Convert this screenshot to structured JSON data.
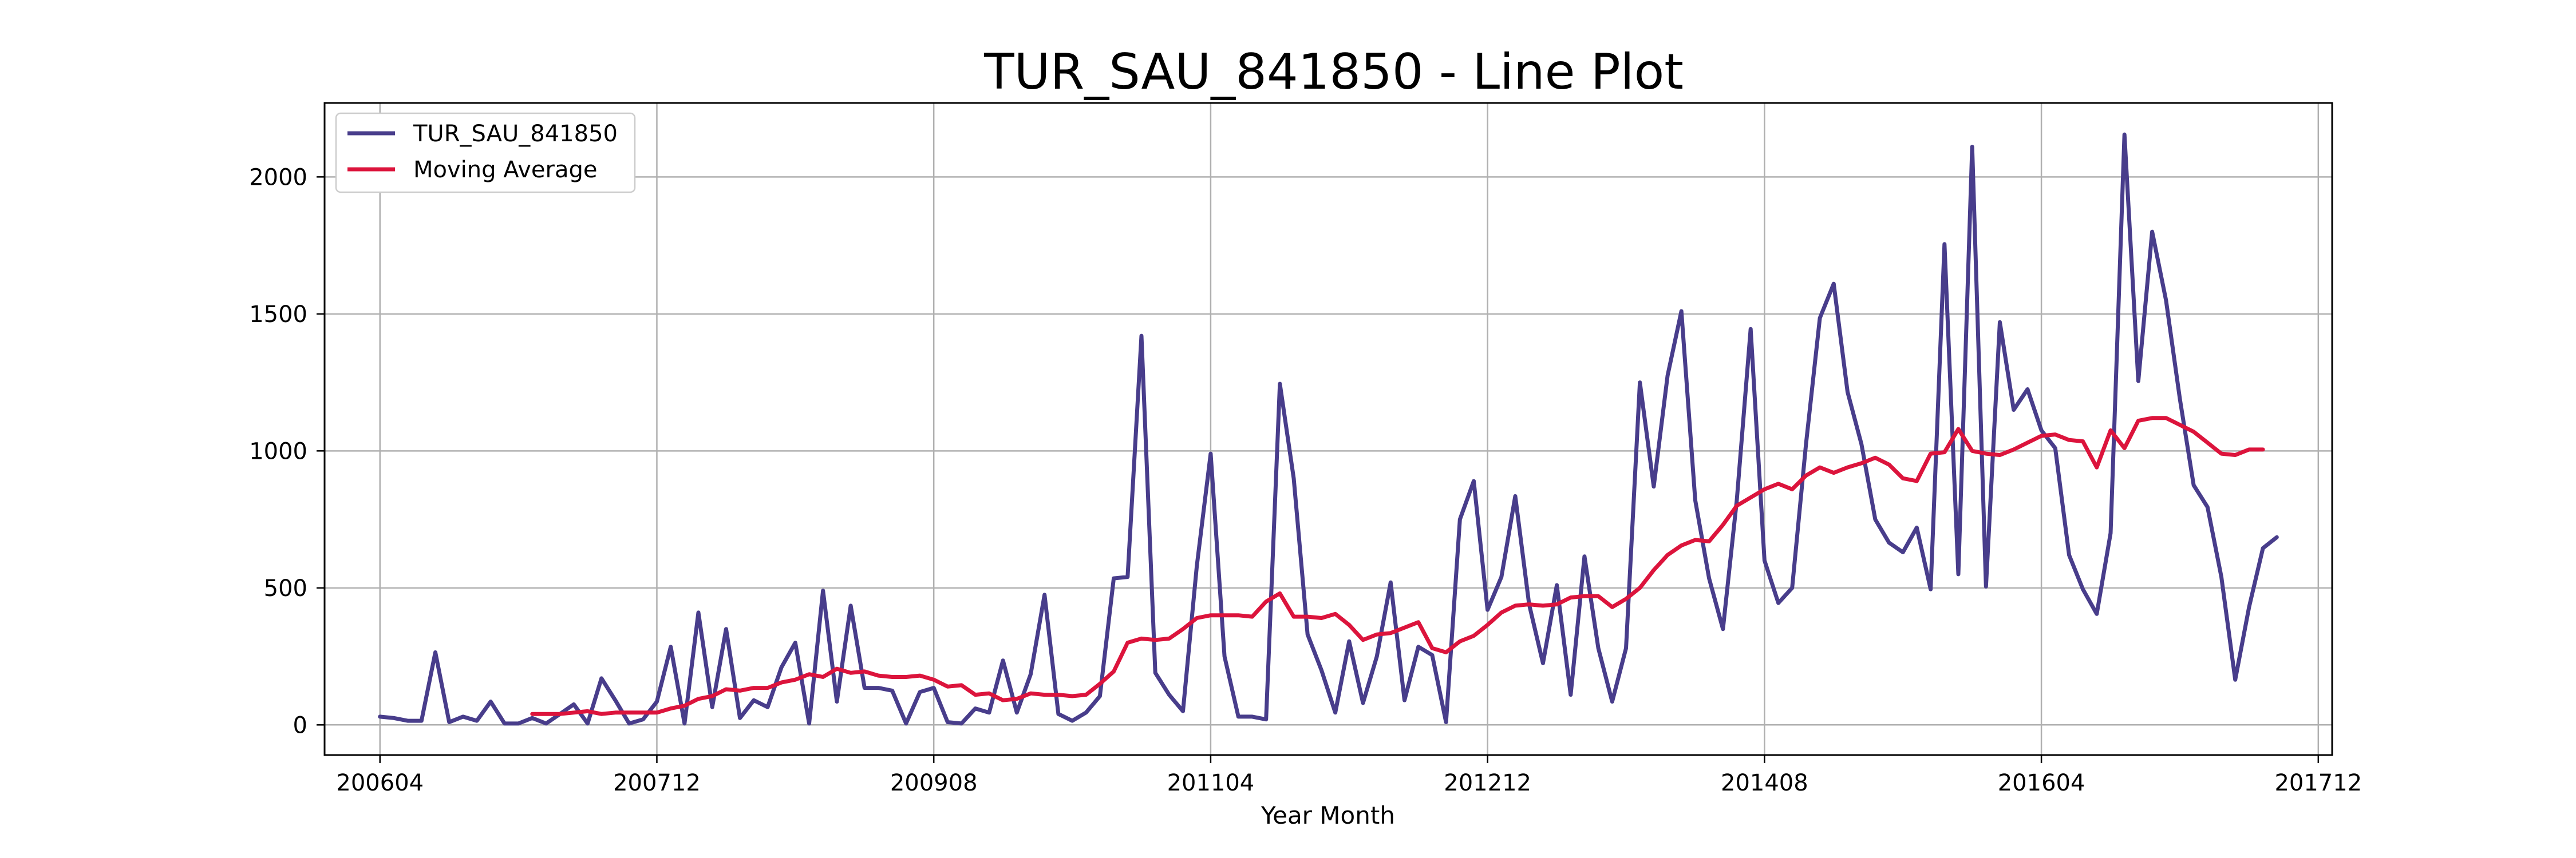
{
  "chart_data": {
    "type": "line",
    "title": "TUR_SAU_841850 - Line Plot",
    "xlabel": "Year Month",
    "ylabel": "",
    "x_start": "2006-04",
    "x_step_months": 1,
    "xlim": [
      "2005-12",
      "2018-01"
    ],
    "ylim": [
      -110,
      2270
    ],
    "x_ticks": [
      {
        "label": "200604",
        "month": "2006-04"
      },
      {
        "label": "200712",
        "month": "2007-12"
      },
      {
        "label": "200908",
        "month": "2009-08"
      },
      {
        "label": "201104",
        "month": "2011-04"
      },
      {
        "label": "201212",
        "month": "2012-12"
      },
      {
        "label": "201408",
        "month": "2014-08"
      },
      {
        "label": "201604",
        "month": "2016-04"
      },
      {
        "label": "201712",
        "month": "2017-12"
      }
    ],
    "y_ticks": [
      0,
      500,
      1000,
      1500,
      2000
    ],
    "grid": true,
    "legend_position": "top-left",
    "series": [
      {
        "name": "TUR_SAU_841850",
        "color": "#483d8b",
        "values": [
          30,
          25,
          15,
          15,
          265,
          10,
          30,
          15,
          85,
          5,
          5,
          25,
          5,
          40,
          75,
          5,
          170,
          90,
          5,
          20,
          85,
          285,
          5,
          410,
          65,
          350,
          25,
          90,
          65,
          210,
          300,
          5,
          490,
          85,
          435,
          135,
          135,
          125,
          5,
          120,
          135,
          10,
          5,
          60,
          45,
          235,
          45,
          185,
          475,
          40,
          15,
          45,
          105,
          535,
          540,
          1420,
          190,
          110,
          50,
          580,
          990,
          250,
          30,
          30,
          20,
          1245,
          900,
          330,
          200,
          45,
          305,
          80,
          250,
          520,
          90,
          285,
          255,
          10,
          750,
          890,
          420,
          540,
          835,
          440,
          225,
          510,
          110,
          615,
          280,
          85,
          280,
          1250,
          870,
          1275,
          1510,
          820,
          535,
          350,
          820,
          1445,
          600,
          445,
          500,
          1025,
          1485,
          1610,
          1215,
          1025,
          750,
          665,
          630,
          720,
          495,
          1755,
          550,
          2110,
          505,
          1470,
          1150,
          1225,
          1075,
          1010,
          620,
          495,
          405,
          700,
          2155,
          1255,
          1800,
          1550,
          1190,
          875,
          795,
          540,
          165,
          430,
          645,
          685
        ]
      },
      {
        "name": "Moving Average",
        "color": "#dc143c",
        "start_index": 11,
        "values": [
          40,
          40,
          40,
          45,
          50,
          40,
          45,
          45,
          45,
          45,
          60,
          70,
          95,
          105,
          130,
          125,
          135,
          135,
          155,
          165,
          185,
          175,
          205,
          190,
          195,
          180,
          175,
          175,
          180,
          165,
          140,
          145,
          110,
          115,
          90,
          95,
          115,
          110,
          110,
          105,
          110,
          150,
          195,
          300,
          315,
          310,
          315,
          350,
          390,
          400,
          400,
          400,
          395,
          450,
          480,
          395,
          395,
          390,
          405,
          365,
          310,
          330,
          335,
          355,
          375,
          280,
          265,
          305,
          325,
          365,
          410,
          435,
          440,
          435,
          440,
          465,
          470,
          470,
          430,
          460,
          500,
          565,
          620,
          655,
          675,
          670,
          730,
          800,
          830,
          860,
          880,
          860,
          910,
          940,
          920,
          940,
          955,
          975,
          950,
          900,
          890,
          990,
          995,
          1080,
          1000,
          990,
          985,
          1005,
          1030,
          1055,
          1060,
          1040,
          1035,
          940,
          1075,
          1010,
          1110,
          1120,
          1120,
          1095,
          1070,
          1030,
          990,
          985,
          1005,
          1005
        ]
      }
    ]
  }
}
